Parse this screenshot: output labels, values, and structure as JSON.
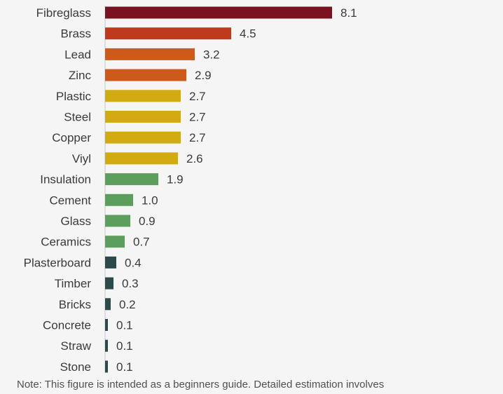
{
  "chart_data": {
    "type": "bar",
    "orientation": "horizontal",
    "categories": [
      "Fibreglass",
      "Brass",
      "Lead",
      "Zinc",
      "Plastic",
      "Steel",
      "Copper",
      "Viyl",
      "Insulation",
      "Cement",
      "Glass",
      "Ceramics",
      "Plasterboard",
      "Timber",
      "Bricks",
      "Concrete",
      "Straw",
      "Stone"
    ],
    "values": [
      8.1,
      4.5,
      3.2,
      2.9,
      2.7,
      2.7,
      2.7,
      2.6,
      1.9,
      1.0,
      0.9,
      0.7,
      0.4,
      0.3,
      0.2,
      0.1,
      0.1,
      0.1
    ],
    "value_labels": [
      "8.1",
      "4.5",
      "3.2",
      "2.9",
      "2.7",
      "2.7",
      "2.7",
      "2.6",
      "1.9",
      "1.0",
      "0.9",
      "0.7",
      "0.4",
      "0.3",
      "0.2",
      "0.1",
      "0.1",
      "0.1"
    ],
    "colors": [
      "#7a1320",
      "#bf3a1c",
      "#cd5a1b",
      "#cd5a1b",
      "#d1ab11",
      "#d1ab11",
      "#d1ab11",
      "#d1ab11",
      "#5c9e5c",
      "#5c9e5c",
      "#5c9e5c",
      "#5c9e5c",
      "#2d4a4a",
      "#2d4a4a",
      "#2d4a4a",
      "#2d4a4a",
      "#2d4a4a",
      "#2d4a4a"
    ],
    "xlim": [
      0,
      8.1
    ],
    "title": "",
    "xlabel": "",
    "ylabel": ""
  },
  "note": "Note: This figure is intended as a beginners guide.  Detailed estimation involves"
}
